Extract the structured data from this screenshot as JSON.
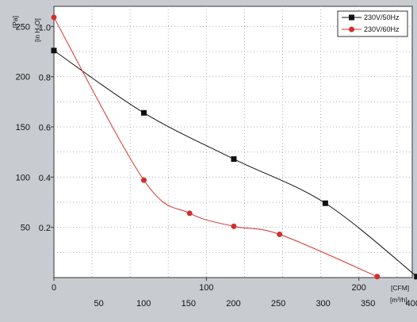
{
  "chart_data": {
    "type": "line",
    "title": "",
    "legend_position": "top-right",
    "grid": true,
    "units": {
      "pa": "[Pa]",
      "inh2o": "[in H₂O]",
      "cfm": "[CFM]",
      "m3h": "[m³/h]"
    },
    "x_cfm": {
      "range": [
        0,
        235
      ],
      "ticks": [
        "0",
        "100",
        "200"
      ],
      "tick_values": [
        0,
        100,
        200
      ]
    },
    "x_m3h": {
      "ticks": [
        "50",
        "100",
        "150",
        "200",
        "250",
        "300",
        "350",
        "400"
      ],
      "tick_values": [
        50,
        100,
        150,
        200,
        250,
        300,
        350,
        400
      ]
    },
    "y_pa": {
      "range": [
        0,
        270
      ],
      "ticks": [
        "50",
        "100",
        "150",
        "200",
        "250"
      ],
      "tick_values": [
        50,
        100,
        150,
        200,
        250
      ]
    },
    "y_inh2o": {
      "ticks": [
        "0.2",
        "0.4",
        "0.6",
        "0.8",
        "1.0"
      ],
      "tick_values": [
        0.2,
        0.4,
        0.6,
        0.8,
        1.0
      ]
    },
    "series": [
      {
        "name": "230V/50Hz",
        "color": "#111111",
        "marker": "square",
        "points": [
          [
            0,
            226
          ],
          [
            59,
            164
          ],
          [
            118,
            118
          ],
          [
            178,
            74
          ],
          [
            238,
            1
          ]
        ]
      },
      {
        "name": "230V/60Hz",
        "color": "#d0312d",
        "marker": "circle",
        "points": [
          [
            0,
            259
          ],
          [
            59,
            97
          ],
          [
            89,
            64
          ],
          [
            118,
            51
          ],
          [
            148,
            43
          ],
          [
            212,
            1
          ]
        ]
      }
    ]
  }
}
